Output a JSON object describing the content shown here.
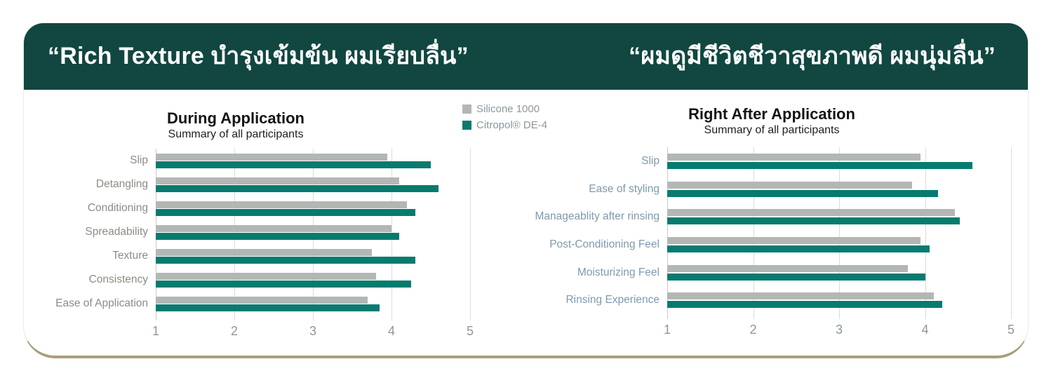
{
  "header": {
    "left_quote": "“Rich Texture บำรุงเข้มข้น ผมเรียบลื่น”",
    "right_quote": "“ผมดูมีชีวิตชีวาสุขภาพดี ผมนุ่มลื่น”",
    "background": "#114740",
    "text_color": "#FFFFFF"
  },
  "card": {
    "background": "#FFFFFF",
    "bottom_border_color": "#A89F7C"
  },
  "legend": {
    "items": [
      {
        "label": "Silicone 1000",
        "color": "#B3B7B4"
      },
      {
        "label": "Citropol® DE-4",
        "color": "#077B6F"
      }
    ]
  },
  "chart_data": [
    {
      "type": "bar",
      "orientation": "horizontal",
      "title": "During Application",
      "subtitle": "Summary of all participants",
      "categories": [
        "Slip",
        "Detangling",
        "Conditioning",
        "Spreadability",
        "Texture",
        "Consistency",
        "Ease of Application"
      ],
      "series": [
        {
          "name": "Silicone 1000",
          "color": "#B3B7B4",
          "values": [
            3.95,
            4.1,
            4.2,
            4.0,
            3.75,
            3.8,
            3.7
          ]
        },
        {
          "name": "Citropol® DE-4",
          "color": "#077B6F",
          "values": [
            4.5,
            4.6,
            4.3,
            4.1,
            4.3,
            4.25,
            3.85
          ]
        }
      ],
      "xlim": [
        1,
        5
      ],
      "xticks": [
        1,
        2,
        3,
        4,
        5
      ],
      "grid": true,
      "legend_position": "top-right-of-chart",
      "label_color": "#8C8C83",
      "tick_color": "#8D9996"
    },
    {
      "type": "bar",
      "orientation": "horizontal",
      "title": "Right After Application",
      "subtitle": "Summary of all participants",
      "categories": [
        "Slip",
        "Ease of styling",
        "Manageablity after rinsing",
        "Post-Conditioning Feel",
        "Moisturizing Feel",
        "Rinsing Experience"
      ],
      "series": [
        {
          "name": "Silicone 1000",
          "color": "#B3B7B4",
          "values": [
            3.95,
            3.85,
            4.35,
            3.95,
            3.8,
            4.1
          ]
        },
        {
          "name": "Citropol® DE-4",
          "color": "#077B6F",
          "values": [
            4.55,
            4.15,
            4.4,
            4.05,
            4.0,
            4.2
          ]
        }
      ],
      "xlim": [
        1,
        5
      ],
      "xticks": [
        1,
        2,
        3,
        4,
        5
      ],
      "grid": true,
      "legend_position": "top-left-of-chart",
      "label_color": "#7E9AAD",
      "tick_color": "#8D9996"
    }
  ]
}
